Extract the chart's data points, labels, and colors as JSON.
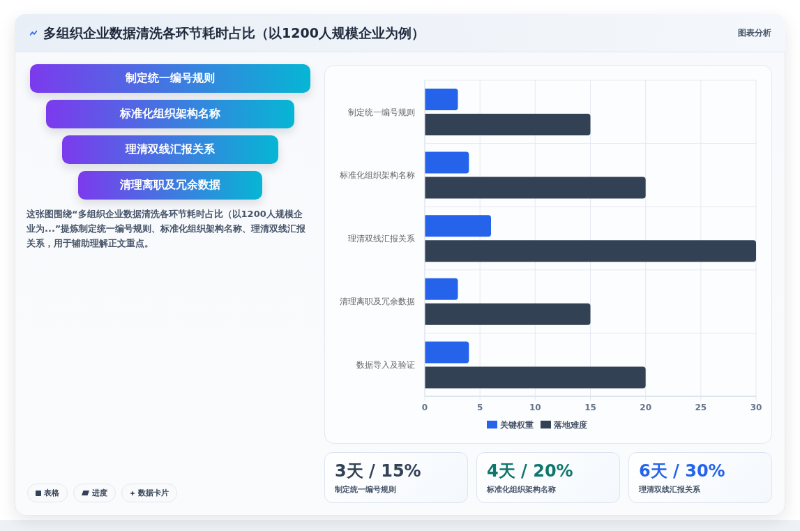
{
  "chart_data": [
    {
      "type": "other",
      "title": "多组织企业数据清洗各环节耗时占比（以1200人规模企业为例）",
      "annotations": [
        "图表分析"
      ]
    },
    {
      "type": "other",
      "annotations": [
        "制定统一编号规则",
        "标准化组织架构名称",
        "理清双线汇报关系",
        "清理离职及冗余数据"
      ]
    },
    {
      "type": "other",
      "annotations": [
        "这张图围绕“多组织企业数据清洗各环节耗时占比（以1200人规模企业为...”提炼制定统一编号规则、标准化组织架构名称、理清双线汇报关系，用于辅助理解正文重点。",
        "表格",
        "进度",
        "数据卡片"
      ]
    },
    {
      "type": "bar",
      "orientation": "horizontal",
      "categories": [
        "制定统一编号规则",
        "标准化组织架构名称",
        "理清双线汇报关系",
        "清理离职及冗余数据",
        "数据导入及验证"
      ],
      "series": [
        {
          "name": "关键权重",
          "color": "#2563eb",
          "values": [
            3,
            4,
            6,
            3,
            4
          ]
        },
        {
          "name": "落地难度",
          "color": "#334155",
          "values": [
            15,
            20,
            30,
            15,
            20
          ]
        }
      ],
      "xlim": [
        0,
        30
      ],
      "xticks": [
        0,
        5,
        10,
        15,
        20,
        25,
        30
      ],
      "grid": true,
      "legend": "bottom"
    },
    {
      "type": "other",
      "annotations": [
        "3天 / 15%",
        "制定统一编号规则",
        "4天 / 20%",
        "标准化组织架构名称",
        "6天 / 30%",
        "理清双线汇报关系"
      ]
    }
  ]
}
